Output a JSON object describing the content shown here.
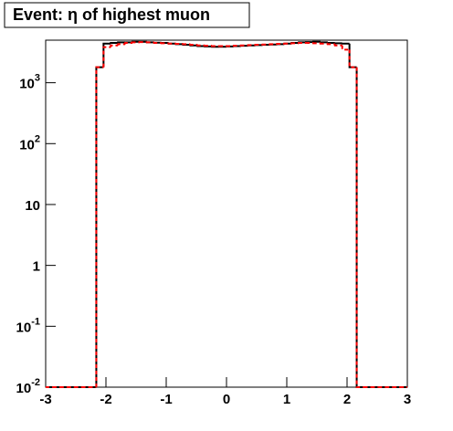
{
  "chart_data": {
    "type": "histogram",
    "title": "Event: η of highest muon",
    "bins": [
      -3,
      -2.88,
      -2.76,
      -2.64,
      -2.52,
      -2.4,
      -2.28,
      -2.16,
      -2.04,
      -1.92,
      -1.8,
      -1.68,
      -1.56,
      -1.44,
      -1.32,
      -1.2,
      -1.08,
      -0.96,
      -0.84,
      -0.72,
      -0.6,
      -0.48,
      -0.36,
      -0.24,
      -0.12,
      0,
      0.12,
      0.24,
      0.36,
      0.48,
      0.6,
      0.72,
      0.84,
      0.96,
      1.08,
      1.2,
      1.32,
      1.44,
      1.56,
      1.68,
      1.8,
      1.92,
      2.04,
      2.16,
      2.28,
      2.4,
      2.52,
      2.64,
      2.76,
      2.88,
      3
    ],
    "series": [
      {
        "color": "#000000",
        "line_style": "solid",
        "values": [
          0,
          0,
          0,
          0,
          0,
          0,
          0,
          1800,
          4400,
          4500,
          4600,
          4600,
          4700,
          4700,
          4600,
          4550,
          4500,
          4400,
          4300,
          4200,
          4100,
          4000,
          3950,
          3900,
          3900,
          3950,
          4000,
          4050,
          4100,
          4150,
          4200,
          4250,
          4300,
          4400,
          4500,
          4600,
          4650,
          4700,
          4600,
          4500,
          4450,
          4400,
          1800,
          0,
          0,
          0,
          0,
          0,
          0,
          0
        ]
      },
      {
        "color": "#ff0000",
        "line_style": "dashed",
        "values": [
          0,
          0,
          0,
          0,
          0,
          0,
          0,
          1800,
          3850,
          4100,
          4300,
          4500,
          4600,
          4650,
          4600,
          4500,
          4450,
          4400,
          4350,
          4300,
          4200,
          4100,
          4050,
          4000,
          4000,
          4000,
          4050,
          4100,
          4150,
          4200,
          4250,
          4300,
          4350,
          4400,
          4450,
          4500,
          4500,
          4450,
          4400,
          4300,
          4100,
          3500,
          1800,
          0,
          0,
          0,
          0,
          0,
          0,
          0
        ]
      }
    ],
    "xlim": [
      -3,
      3
    ],
    "xticks": [
      -3,
      -2,
      -1,
      0,
      1,
      2,
      3
    ],
    "ylim": [
      0.01,
      5000
    ],
    "log_y": true,
    "yticks": [
      {
        "value": 0.01,
        "label": "10",
        "exponent": "-2"
      },
      {
        "value": 0.1,
        "label": "10",
        "exponent": "-1"
      },
      1,
      10,
      {
        "value": 100,
        "label": "10",
        "exponent": "2"
      },
      {
        "value": 1000,
        "label": "10",
        "exponent": "3"
      }
    ],
    "grid": false
  }
}
